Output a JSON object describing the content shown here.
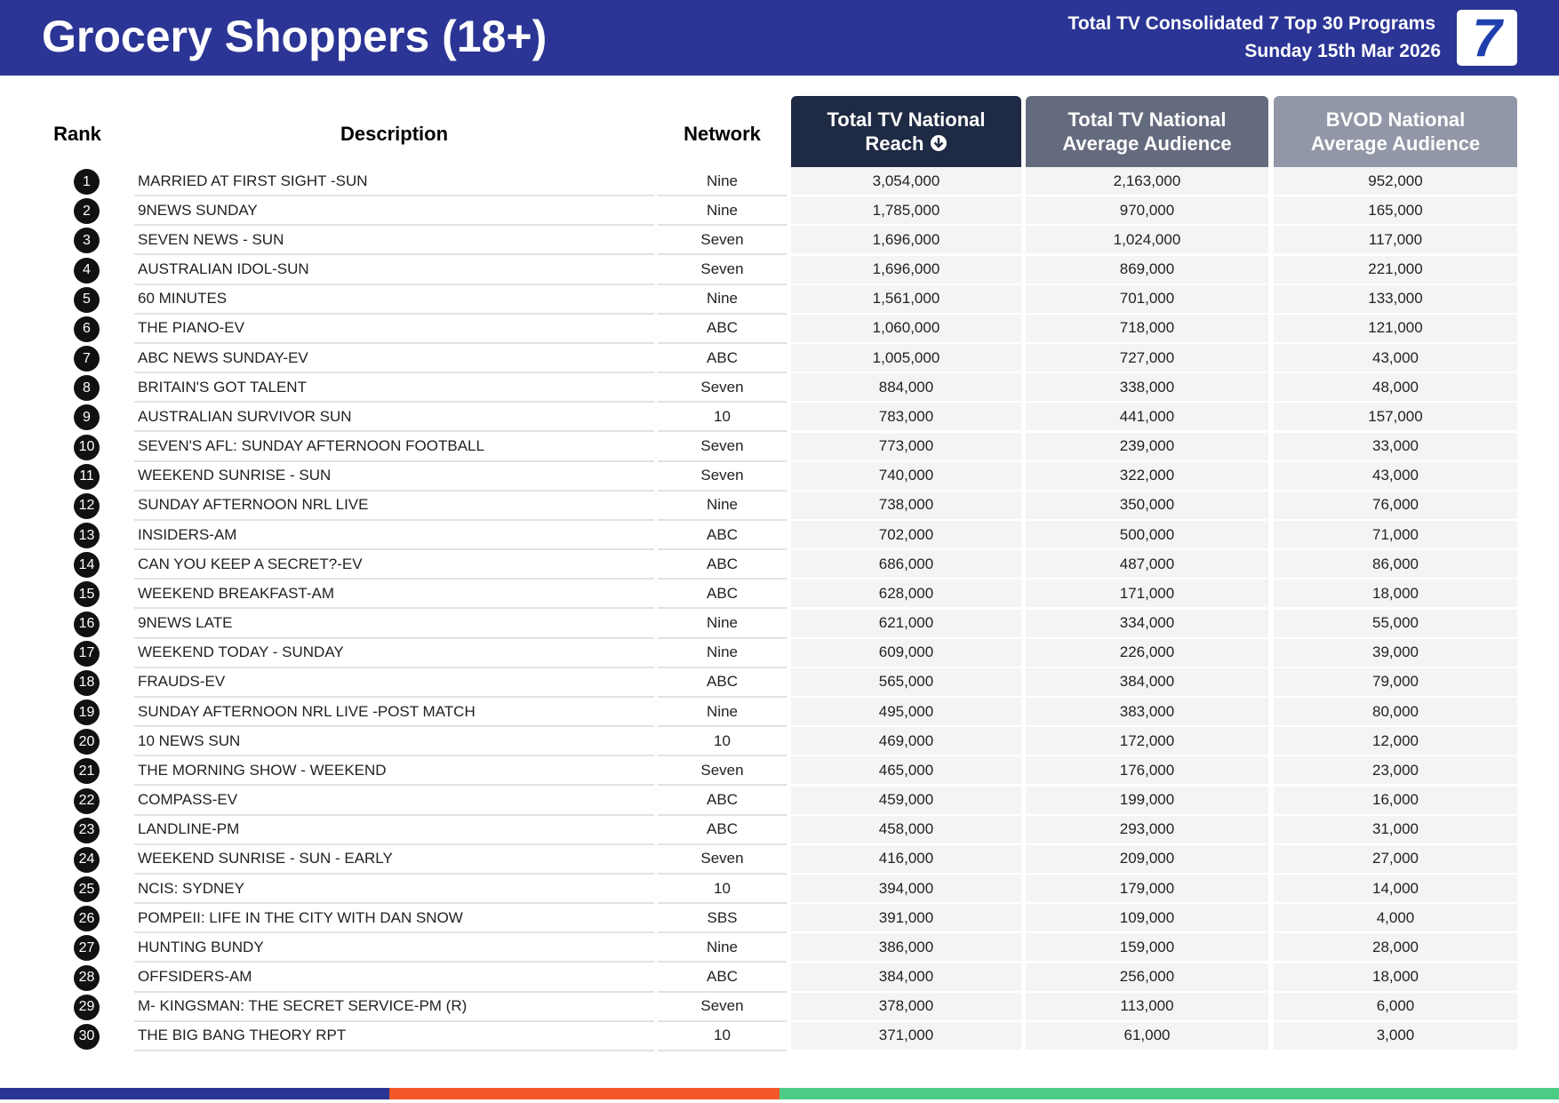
{
  "header": {
    "title": "Grocery Shoppers (18+)",
    "subtitle_lines": [
      "Total TV Consolidated 7 Top 30 Programs",
      "Sunday 15th Mar 2026"
    ],
    "logo": "7"
  },
  "table": {
    "columns": {
      "rank": "Rank",
      "description": "Description",
      "network": "Network",
      "reach": [
        "Total TV National",
        "Reach"
      ],
      "average": [
        "Total TV National",
        "Average Audience"
      ],
      "bvod": [
        "BVOD National",
        "Average Audience"
      ]
    },
    "rows": [
      [
        1,
        "MARRIED AT FIRST SIGHT -SUN",
        "Nine",
        "3,054,000",
        "2,163,000",
        "952,000"
      ],
      [
        2,
        "9NEWS SUNDAY",
        "Nine",
        "1,785,000",
        "970,000",
        "165,000"
      ],
      [
        3,
        "SEVEN NEWS - SUN",
        "Seven",
        "1,696,000",
        "1,024,000",
        "117,000"
      ],
      [
        4,
        "AUSTRALIAN IDOL-SUN",
        "Seven",
        "1,696,000",
        "869,000",
        "221,000"
      ],
      [
        5,
        "60 MINUTES",
        "Nine",
        "1,561,000",
        "701,000",
        "133,000"
      ],
      [
        6,
        "THE PIANO-EV",
        "ABC",
        "1,060,000",
        "718,000",
        "121,000"
      ],
      [
        7,
        "ABC NEWS SUNDAY-EV",
        "ABC",
        "1,005,000",
        "727,000",
        "43,000"
      ],
      [
        8,
        "BRITAIN'S GOT TALENT",
        "Seven",
        "884,000",
        "338,000",
        "48,000"
      ],
      [
        9,
        "AUSTRALIAN SURVIVOR SUN",
        "10",
        "783,000",
        "441,000",
        "157,000"
      ],
      [
        10,
        "SEVEN'S AFL: SUNDAY AFTERNOON FOOTBALL",
        "Seven",
        "773,000",
        "239,000",
        "33,000"
      ],
      [
        11,
        "WEEKEND SUNRISE - SUN",
        "Seven",
        "740,000",
        "322,000",
        "43,000"
      ],
      [
        12,
        "SUNDAY AFTERNOON NRL LIVE",
        "Nine",
        "738,000",
        "350,000",
        "76,000"
      ],
      [
        13,
        "INSIDERS-AM",
        "ABC",
        "702,000",
        "500,000",
        "71,000"
      ],
      [
        14,
        "CAN YOU KEEP A SECRET?-EV",
        "ABC",
        "686,000",
        "487,000",
        "86,000"
      ],
      [
        15,
        "WEEKEND BREAKFAST-AM",
        "ABC",
        "628,000",
        "171,000",
        "18,000"
      ],
      [
        16,
        "9NEWS LATE",
        "Nine",
        "621,000",
        "334,000",
        "55,000"
      ],
      [
        17,
        "WEEKEND TODAY - SUNDAY",
        "Nine",
        "609,000",
        "226,000",
        "39,000"
      ],
      [
        18,
        "FRAUDS-EV",
        "ABC",
        "565,000",
        "384,000",
        "79,000"
      ],
      [
        19,
        "SUNDAY AFTERNOON NRL LIVE -POST MATCH",
        "Nine",
        "495,000",
        "383,000",
        "80,000"
      ],
      [
        20,
        "10 NEWS SUN",
        "10",
        "469,000",
        "172,000",
        "12,000"
      ],
      [
        21,
        "THE MORNING SHOW - WEEKEND",
        "Seven",
        "465,000",
        "176,000",
        "23,000"
      ],
      [
        22,
        "COMPASS-EV",
        "ABC",
        "459,000",
        "199,000",
        "16,000"
      ],
      [
        23,
        "LANDLINE-PM",
        "ABC",
        "458,000",
        "293,000",
        "31,000"
      ],
      [
        24,
        "WEEKEND SUNRISE - SUN - EARLY",
        "Seven",
        "416,000",
        "209,000",
        "27,000"
      ],
      [
        25,
        "NCIS: SYDNEY",
        "10",
        "394,000",
        "179,000",
        "14,000"
      ],
      [
        26,
        "POMPEII: LIFE IN THE CITY WITH DAN SNOW",
        "SBS",
        "391,000",
        "109,000",
        "4,000"
      ],
      [
        27,
        "HUNTING BUNDY",
        "Nine",
        "386,000",
        "159,000",
        "28,000"
      ],
      [
        28,
        "OFFSIDERS-AM",
        "ABC",
        "384,000",
        "256,000",
        "18,000"
      ],
      [
        29,
        "M- KINGSMAN: THE SECRET SERVICE-PM (R)",
        "Seven",
        "378,000",
        "113,000",
        "6,000"
      ],
      [
        30,
        "THE BIG BANG THEORY RPT",
        "10",
        "371,000",
        "61,000",
        "3,000"
      ]
    ]
  }
}
